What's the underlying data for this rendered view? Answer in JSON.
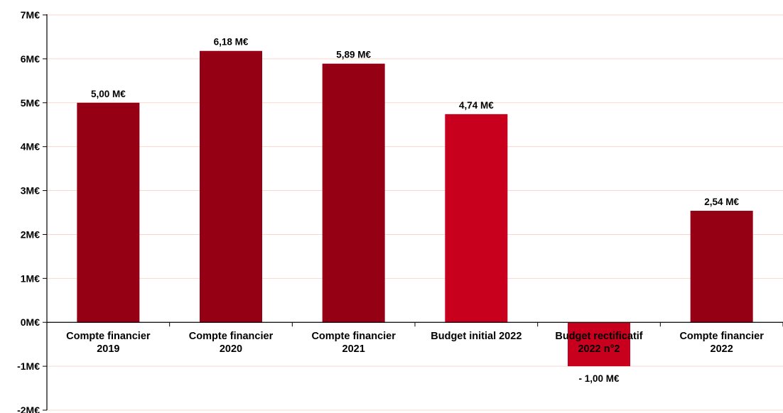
{
  "chart_data": {
    "type": "bar",
    "title": "",
    "xlabel": "",
    "ylabel": "",
    "ylim": [
      -2,
      7
    ],
    "yticks": [
      {
        "value": 7,
        "label": "7M€"
      },
      {
        "value": 6,
        "label": "6M€"
      },
      {
        "value": 5,
        "label": "5M€"
      },
      {
        "value": 4,
        "label": "4M€"
      },
      {
        "value": 3,
        "label": "3M€"
      },
      {
        "value": 2,
        "label": "2M€"
      },
      {
        "value": 1,
        "label": "1M€"
      },
      {
        "value": 0,
        "label": "0M€"
      },
      {
        "value": -1,
        "label": "-1M€"
      },
      {
        "value": -2,
        "label": "-2M€"
      }
    ],
    "grid": true,
    "gridColor": "#f7d9cc",
    "categories": [
      [
        "Compte financier",
        "2019"
      ],
      [
        "Compte financier",
        "2020"
      ],
      [
        "Compte financier",
        "2021"
      ],
      [
        "Budget initial 2022"
      ],
      [
        "Budget rectificatif",
        "2022 n°2"
      ],
      [
        "Compte financier",
        "2022"
      ]
    ],
    "values": [
      5.0,
      6.18,
      5.89,
      4.74,
      -1.0,
      2.54
    ],
    "valueLabels": [
      "5,00 M€",
      "6,18 M€",
      "5,89 M€",
      "4,74 M€",
      "- 1,00 M€",
      "2,54 M€"
    ],
    "colors": [
      "#950014",
      "#950014",
      "#950014",
      "#c8001e",
      "#c8001e",
      "#950014"
    ]
  }
}
